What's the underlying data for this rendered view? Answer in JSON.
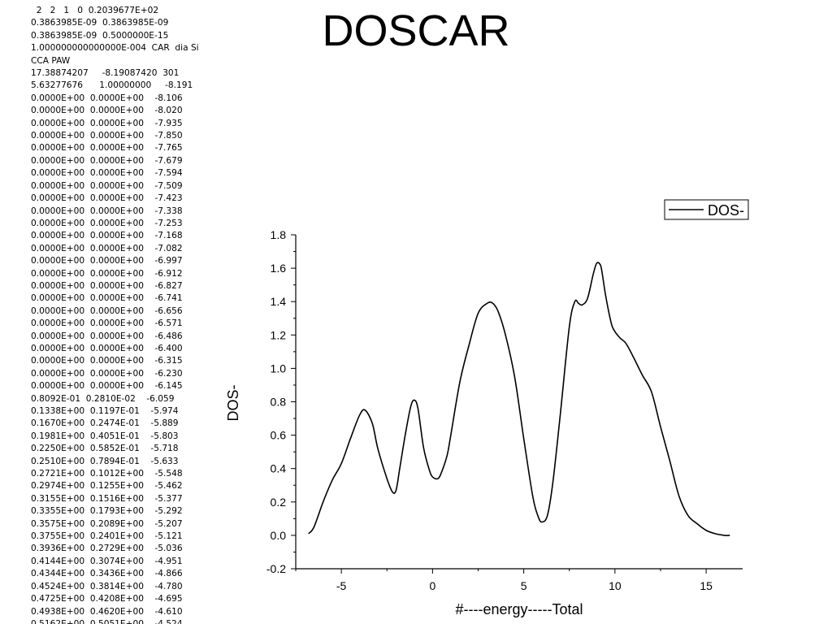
{
  "page": {
    "title": "DOSCAR"
  },
  "doscar_lines": [
    "  2   2   1   0  0.2039677E+02",
    "0.3863985E-09  0.3863985E-09",
    "0.3863985E-09  0.5000000E-15",
    "1.000000000000000E-004  CAR  dia Si",
    "CCA PAW",
    "17.38874207     -8.19087420  301",
    "5.63277676      1.00000000     -8.191",
    "0.0000E+00  0.0000E+00    -8.106",
    "0.0000E+00  0.0000E+00    -8.020",
    "0.0000E+00  0.0000E+00    -7.935",
    "0.0000E+00  0.0000E+00    -7.850",
    "0.0000E+00  0.0000E+00    -7.765",
    "0.0000E+00  0.0000E+00    -7.679",
    "0.0000E+00  0.0000E+00    -7.594",
    "0.0000E+00  0.0000E+00    -7.509",
    "0.0000E+00  0.0000E+00    -7.423",
    "0.0000E+00  0.0000E+00    -7.338",
    "0.0000E+00  0.0000E+00    -7.253",
    "0.0000E+00  0.0000E+00    -7.168",
    "0.0000E+00  0.0000E+00    -7.082",
    "0.0000E+00  0.0000E+00    -6.997",
    "0.0000E+00  0.0000E+00    -6.912",
    "0.0000E+00  0.0000E+00    -6.827",
    "0.0000E+00  0.0000E+00    -6.741",
    "0.0000E+00  0.0000E+00    -6.656",
    "0.0000E+00  0.0000E+00    -6.571",
    "0.0000E+00  0.0000E+00    -6.486",
    "0.0000E+00  0.0000E+00    -6.400",
    "0.0000E+00  0.0000E+00    -6.315",
    "0.0000E+00  0.0000E+00    -6.230",
    "0.0000E+00  0.0000E+00    -6.145",
    "0.8092E-01  0.2810E-02    -6.059",
    "0.1338E+00  0.1197E-01    -5.974",
    "0.1670E+00  0.2474E-01    -5.889",
    "0.1981E+00  0.4051E-01    -5.803",
    "0.2250E+00  0.5852E-01    -5.718",
    "0.2510E+00  0.7894E-01    -5.633",
    "0.2721E+00  0.1012E+00    -5.548",
    "0.2974E+00  0.1255E+00    -5.462",
    "0.3155E+00  0.1516E+00    -5.377",
    "0.3355E+00  0.1793E+00    -5.292",
    "0.3575E+00  0.2089E+00    -5.207",
    "0.3755E+00  0.2401E+00    -5.121",
    "0.3936E+00  0.2729E+00    -5.036",
    "0.4144E+00  0.3074E+00    -4.951",
    "0.4344E+00  0.3436E+00    -4.866",
    "0.4524E+00  0.3814E+00    -4.780",
    "0.4725E+00  0.4208E+00    -4.695",
    "0.4938E+00  0.4620E+00    -4.610",
    "0.5162E+00  0.5051E+00    -4.524"
  ],
  "chart_data": {
    "type": "line",
    "xlabel": "#----energy-----Total",
    "ylabel": "DOS-",
    "xlim": [
      -7.5,
      17
    ],
    "ylim": [
      -0.2,
      1.8
    ],
    "xticks": [
      -5,
      0,
      5,
      10,
      15
    ],
    "yticks": [
      -0.2,
      0.0,
      0.2,
      0.4,
      0.6,
      0.8,
      1.0,
      1.2,
      1.4,
      1.6,
      1.8
    ],
    "ytick_labels": [
      "-0.2",
      "0.0",
      "0.2",
      "0.4",
      "0.6",
      "0.8",
      "1.0",
      "1.2",
      "1.4",
      "1.6",
      "1.8"
    ],
    "grid": false,
    "legend": {
      "position": "top-right",
      "entries": [
        "DOS-"
      ]
    },
    "series": [
      {
        "name": "DOS-",
        "color": "#000000",
        "x": [
          -6.8,
          -6.5,
          -6.0,
          -5.5,
          -5.0,
          -4.5,
          -4.0,
          -3.7,
          -3.3,
          -3.0,
          -2.5,
          -2.2,
          -2.0,
          -1.8,
          -1.5,
          -1.2,
          -1.0,
          -0.8,
          -0.5,
          -0.2,
          0.0,
          0.3,
          0.5,
          0.8,
          1.0,
          1.5,
          2.0,
          2.5,
          3.0,
          3.3,
          3.6,
          4.0,
          4.5,
          5.0,
          5.5,
          5.8,
          6.0,
          6.3,
          6.6,
          7.0,
          7.5,
          7.8,
          8.0,
          8.2,
          8.5,
          8.8,
          9.0,
          9.2,
          9.3,
          9.5,
          9.8,
          10.0,
          10.3,
          10.6,
          11.0,
          11.5,
          12.0,
          12.5,
          13.0,
          13.5,
          14.0,
          14.5,
          15.0,
          15.5,
          16.0,
          16.3
        ],
        "y": [
          0.01,
          0.05,
          0.2,
          0.33,
          0.43,
          0.58,
          0.72,
          0.75,
          0.67,
          0.52,
          0.34,
          0.26,
          0.27,
          0.4,
          0.6,
          0.77,
          0.81,
          0.76,
          0.53,
          0.4,
          0.35,
          0.34,
          0.38,
          0.48,
          0.6,
          0.92,
          1.14,
          1.33,
          1.39,
          1.39,
          1.34,
          1.2,
          0.95,
          0.58,
          0.23,
          0.11,
          0.08,
          0.12,
          0.32,
          0.72,
          1.25,
          1.4,
          1.39,
          1.38,
          1.42,
          1.56,
          1.63,
          1.62,
          1.57,
          1.43,
          1.27,
          1.22,
          1.18,
          1.15,
          1.07,
          0.96,
          0.86,
          0.65,
          0.45,
          0.24,
          0.12,
          0.07,
          0.03,
          0.01,
          0.0,
          0.0
        ]
      }
    ]
  }
}
